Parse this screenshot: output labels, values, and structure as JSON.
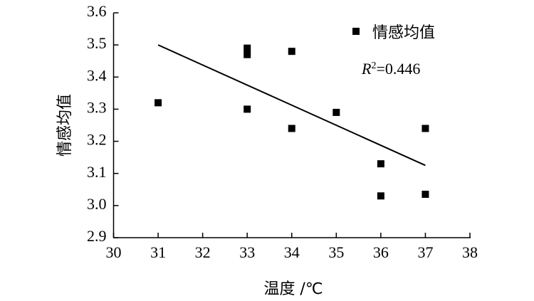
{
  "chart_data": {
    "type": "scatter",
    "title": "",
    "xlabel": "温度 /℃",
    "ylabel": "情感均值",
    "xlim": [
      30,
      38
    ],
    "ylim": [
      2.9,
      3.6
    ],
    "xticks": [
      30,
      31,
      32,
      33,
      34,
      35,
      36,
      37,
      38
    ],
    "yticks": [
      2.9,
      3.0,
      3.1,
      3.2,
      3.3,
      3.4,
      3.5,
      3.6
    ],
    "xtick_labels": [
      "30",
      "31",
      "32",
      "33",
      "34",
      "35",
      "36",
      "37",
      "38"
    ],
    "ytick_labels": [
      "2.9",
      "3.0",
      "3.1",
      "3.2",
      "3.3",
      "3.4",
      "3.5",
      "3.6"
    ],
    "grid": false,
    "legend_position": "top-right",
    "series": [
      {
        "name": "情感均值",
        "marker": "square",
        "color": "#000000",
        "points": [
          {
            "x": 31,
            "y": 3.32
          },
          {
            "x": 33,
            "y": 3.49
          },
          {
            "x": 33,
            "y": 3.47
          },
          {
            "x": 33,
            "y": 3.3
          },
          {
            "x": 34,
            "y": 3.48
          },
          {
            "x": 34,
            "y": 3.24
          },
          {
            "x": 35,
            "y": 3.29
          },
          {
            "x": 36,
            "y": 3.13
          },
          {
            "x": 36,
            "y": 3.03
          },
          {
            "x": 37,
            "y": 3.24
          },
          {
            "x": 37,
            "y": 3.035
          }
        ]
      }
    ],
    "trendline": {
      "x_start": 31,
      "y_start": 3.5,
      "x_end": 37,
      "y_end": 3.125,
      "color": "#000000"
    },
    "annotation": {
      "r2_symbol": "R",
      "r2_sup": "2",
      "r2_value": "=0.446"
    }
  }
}
